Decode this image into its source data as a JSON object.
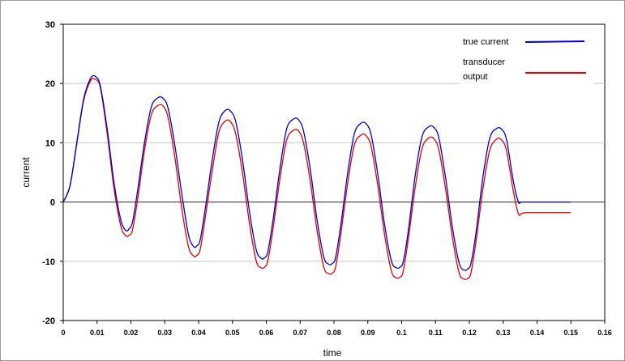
{
  "chart_data": {
    "type": "line",
    "title": "",
    "xlabel": "time",
    "ylabel": "current",
    "xlim": [
      0,
      0.16
    ],
    "ylim": [
      -20,
      30
    ],
    "x_ticks": [
      "0",
      "0.01",
      "0.02",
      "0.03",
      "0.04",
      "0.05",
      "0.06",
      "0.07",
      "0.08",
      "0.09",
      "0.1",
      "0.11",
      "0.12",
      "0.13",
      "0.14",
      "0.15",
      "0.16"
    ],
    "y_ticks": [
      "-20",
      "-10",
      "0",
      "10",
      "20",
      "30"
    ],
    "grid": "horizontal",
    "legend_position": "top-right",
    "colors": {
      "true_current": "#0000cc",
      "transducer_output": "#e00000",
      "grid": "#c8c8c8",
      "plot_bg": "#ffffff",
      "zero_line": "#333333"
    },
    "series": [
      {
        "name": "true current",
        "x": [
          0,
          0.002,
          0.004,
          0.006,
          0.008,
          0.0095,
          0.011,
          0.013,
          0.015,
          0.017,
          0.0185,
          0.0195,
          0.0205,
          0.022,
          0.024,
          0.026,
          0.028,
          0.0295,
          0.031,
          0.033,
          0.035,
          0.037,
          0.0385,
          0.0395,
          0.0405,
          0.042,
          0.044,
          0.046,
          0.048,
          0.0495,
          0.051,
          0.053,
          0.055,
          0.057,
          0.0585,
          0.0595,
          0.0605,
          0.062,
          0.064,
          0.066,
          0.068,
          0.0695,
          0.071,
          0.073,
          0.075,
          0.077,
          0.0785,
          0.0795,
          0.0805,
          0.082,
          0.084,
          0.086,
          0.088,
          0.0895,
          0.091,
          0.093,
          0.095,
          0.097,
          0.0985,
          0.0995,
          0.1005,
          0.102,
          0.104,
          0.106,
          0.108,
          0.1095,
          0.111,
          0.113,
          0.115,
          0.117,
          0.1185,
          0.1195,
          0.1205,
          0.122,
          0.124,
          0.126,
          0.128,
          0.1295,
          0.131,
          0.133,
          0.1345,
          0.1355,
          0.14,
          0.15
        ],
        "y": [
          0,
          2.8,
          10,
          17.3,
          20.8,
          21.2,
          19.5,
          12.3,
          3.3,
          -3,
          -4.8,
          -4.5,
          -3.3,
          2,
          10,
          16,
          17.6,
          17.5,
          15.8,
          9.5,
          1.5,
          -5.5,
          -7.5,
          -7.4,
          -6.3,
          -1,
          7,
          13.5,
          15.5,
          15.3,
          13.5,
          7,
          -1.5,
          -8,
          -9.5,
          -9.4,
          -8.3,
          -3,
          5.5,
          12.3,
          14,
          13.9,
          12,
          5.5,
          -3,
          -9.3,
          -10.5,
          -10.4,
          -9.3,
          -4,
          4.7,
          11.5,
          13.3,
          13.2,
          11.3,
          4.5,
          -4,
          -10,
          -11.1,
          -11,
          -10,
          -4.7,
          4.5,
          11,
          12.7,
          12.6,
          10.8,
          4,
          -4.3,
          -10.3,
          -11.5,
          -11.3,
          -10.3,
          -5,
          4.2,
          10.7,
          12.4,
          12.3,
          10.5,
          3.5,
          0,
          0,
          0,
          0
        ]
      },
      {
        "name": "transducer output",
        "x": [
          0,
          0.002,
          0.004,
          0.006,
          0.008,
          0.0095,
          0.011,
          0.013,
          0.015,
          0.017,
          0.0185,
          0.0195,
          0.0205,
          0.022,
          0.024,
          0.026,
          0.028,
          0.0295,
          0.031,
          0.033,
          0.035,
          0.037,
          0.0385,
          0.0395,
          0.0405,
          0.042,
          0.044,
          0.046,
          0.048,
          0.0495,
          0.051,
          0.053,
          0.055,
          0.057,
          0.0585,
          0.0595,
          0.0605,
          0.062,
          0.064,
          0.066,
          0.068,
          0.0695,
          0.071,
          0.073,
          0.075,
          0.077,
          0.0785,
          0.0795,
          0.0805,
          0.082,
          0.084,
          0.086,
          0.088,
          0.0895,
          0.091,
          0.093,
          0.095,
          0.097,
          0.0985,
          0.0995,
          0.1005,
          0.102,
          0.104,
          0.106,
          0.108,
          0.1095,
          0.111,
          0.113,
          0.115,
          0.117,
          0.1185,
          0.1195,
          0.1205,
          0.122,
          0.124,
          0.126,
          0.128,
          0.1295,
          0.131,
          0.133,
          0.1345,
          0.1355,
          0.137,
          0.14,
          0.15
        ],
        "y": [
          0,
          2.7,
          9.8,
          17,
          20.4,
          20.7,
          19.2,
          11.5,
          2.3,
          -4,
          -5.7,
          -5.6,
          -4.6,
          0.5,
          8.7,
          14.7,
          16.3,
          16.2,
          14.2,
          7.5,
          -1,
          -7.5,
          -9.1,
          -9,
          -7.9,
          -2.5,
          5.2,
          11.8,
          13.7,
          13.5,
          11.4,
          4.8,
          -3.5,
          -9.9,
          -11.1,
          -11,
          -9.8,
          -4.5,
          3.8,
          10.4,
          12.1,
          12,
          10,
          3.5,
          -4.8,
          -11,
          -12.1,
          -12,
          -10.9,
          -5.5,
          3,
          9.6,
          11.3,
          11.2,
          9.3,
          2.6,
          -5.7,
          -11.7,
          -12.8,
          -12.7,
          -11.6,
          -6.1,
          2.5,
          9,
          10.8,
          10.7,
          8.8,
          2.1,
          -6,
          -12,
          -13,
          -12.9,
          -11.9,
          -6.5,
          2.2,
          8.7,
          10.6,
          10.5,
          8.6,
          1.8,
          -2,
          -1.9,
          -1.8,
          -1.8,
          -1.8
        ]
      }
    ]
  }
}
